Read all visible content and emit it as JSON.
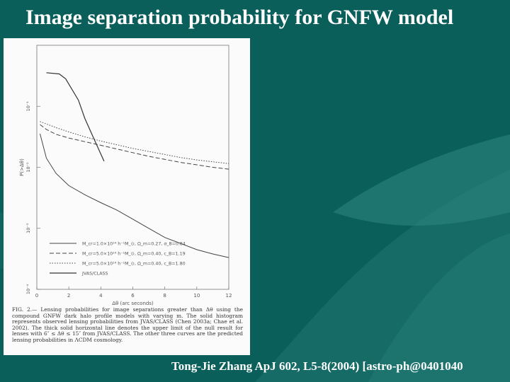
{
  "slide": {
    "title": "Image separation probability for GNFW model",
    "citation": "Tong-Jie Zhang ApJ 602, L5-8(2004) [astro-ph@0401040"
  },
  "colors": {
    "background": "#0b5f5b",
    "decor": "#2f857e",
    "text": "#ffffff"
  },
  "figure": {
    "caption": "FIG. 2.— Lensing probabilities for image separations greater than Δθ using the compound GNFW dark halo profile models with varying m. The solid histogram represents observed lensing probabilities from JVAS/CLASS (Chen 2003a; Chae et al. 2002). The thick solid horizontal line denotes the upper limit of the null result for lenses with 6″ ≤ Δθ ≤ 15″ from JVAS/CLASS. The other three curves are the predicted lensing probabilities in ΛCDM cosmology.",
    "chart_data": {
      "type": "line",
      "xlabel": "Δθ (arc seconds)",
      "ylabel": "P(>Δθ)",
      "xlim": [
        0,
        6
      ],
      "ylim_log10": [
        -4,
        0
      ],
      "x_ticks": [
        "0",
        "2",
        "4",
        "6",
        "8",
        "10",
        "12"
      ],
      "y_ticks": [
        "10⁻¹",
        "10⁻²",
        "10⁻³",
        "10⁻⁴"
      ],
      "legend_position": "bottom-left",
      "series": [
        {
          "name": "M_cr=1.0×10¹⁴ h⁻¹M_⊙, Ω_m=0.27, σ_8=0.84",
          "style": "solid",
          "x": [
            0.1,
            0.3,
            0.6,
            1.0,
            1.5,
            2.0,
            2.5,
            3.0,
            3.5,
            4.0,
            4.5,
            5.0,
            5.5,
            6.0
          ],
          "log10_y": [
            -1.45,
            -1.85,
            -2.1,
            -2.3,
            -2.45,
            -2.58,
            -2.7,
            -2.85,
            -3.0,
            -3.15,
            -3.25,
            -3.35,
            -3.42,
            -3.48
          ]
        },
        {
          "name": "M_cr=5.0×10¹⁴ h⁻¹M_⊙, Ω_m=0.40, c_B=1.19",
          "style": "dashed",
          "x": [
            0.1,
            0.3,
            0.6,
            1.0,
            1.5,
            2.0,
            2.5,
            3.0,
            3.5,
            4.0,
            4.5,
            5.0,
            5.5,
            6.0
          ],
          "log10_y": [
            -1.3,
            -1.38,
            -1.46,
            -1.52,
            -1.58,
            -1.64,
            -1.7,
            -1.76,
            -1.82,
            -1.87,
            -1.92,
            -1.96,
            -2.0,
            -2.03
          ]
        },
        {
          "name": "M_cr=5.0×10¹⁴ h⁻¹M_⊙, Ω_m=0.40, c_B=1.80",
          "style": "dotted",
          "x": [
            0.1,
            0.6,
            1.0,
            1.5,
            2.0,
            2.5,
            3.0,
            3.5,
            4.0,
            4.5,
            5.0,
            5.5,
            6.0
          ],
          "log10_y": [
            -1.25,
            -1.35,
            -1.42,
            -1.5,
            -1.57,
            -1.63,
            -1.69,
            -1.74,
            -1.79,
            -1.84,
            -1.88,
            -1.91,
            -1.94
          ]
        },
        {
          "name": "JVAS/CLASS",
          "style": "histogram",
          "x": [
            0.3,
            0.3,
            0.7,
            0.9,
            1.3,
            1.5,
            1.8,
            2.1
          ],
          "log10_y": [
            -0.45,
            -0.45,
            -0.47,
            -0.55,
            -0.9,
            -1.2,
            -1.55,
            -1.9
          ]
        }
      ]
    }
  }
}
